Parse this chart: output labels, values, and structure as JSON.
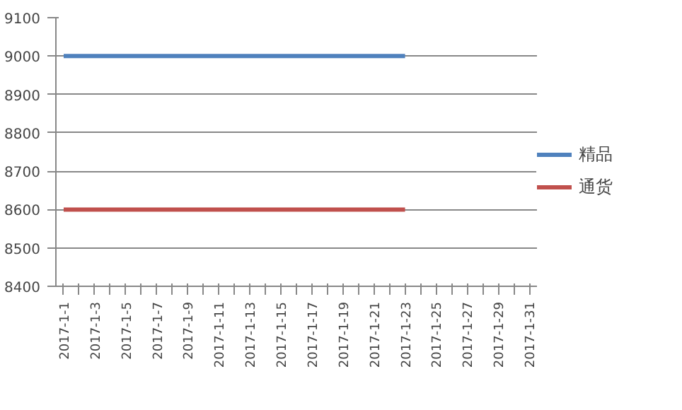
{
  "chart_data": {
    "type": "line",
    "categories": [
      "2017-1-1",
      null,
      "2017-1-3",
      null,
      "2017-1-5",
      null,
      "2017-1-7",
      null,
      "2017-1-9",
      null,
      "2017-1-11",
      null,
      "2017-1-13",
      null,
      "2017-1-15",
      null,
      "2017-1-17",
      null,
      "2017-1-19",
      null,
      "2017-1-21",
      null,
      "2017-1-23",
      null,
      "2017-1-25",
      null,
      "2017-1-27",
      null,
      "2017-1-29",
      null,
      "2017-1-31"
    ],
    "series": [
      {
        "name": "精品",
        "color": "#4f81bd",
        "values": [
          9000,
          9000,
          9000,
          9000,
          9000,
          9000,
          9000,
          9000,
          9000,
          9000,
          9000,
          9000,
          9000,
          9000,
          9000,
          9000,
          9000,
          9000,
          9000,
          9000,
          9000,
          9000,
          9000,
          null,
          null,
          null,
          null,
          null,
          null,
          null,
          null
        ]
      },
      {
        "name": "通货",
        "color": "#c0504d",
        "values": [
          8600,
          8600,
          8600,
          8600,
          8600,
          8600,
          8600,
          8600,
          8600,
          8600,
          8600,
          8600,
          8600,
          8600,
          8600,
          8600,
          8600,
          8600,
          8600,
          8600,
          8600,
          8600,
          8600,
          null,
          null,
          null,
          null,
          null,
          null,
          null,
          null
        ]
      }
    ],
    "ylim": [
      8400,
      9100
    ],
    "yticks": [
      8400,
      8500,
      8600,
      8700,
      8800,
      8900,
      9000,
      9100
    ],
    "grid": "y",
    "legend": "right",
    "marker": "none",
    "line_style": "solid"
  }
}
